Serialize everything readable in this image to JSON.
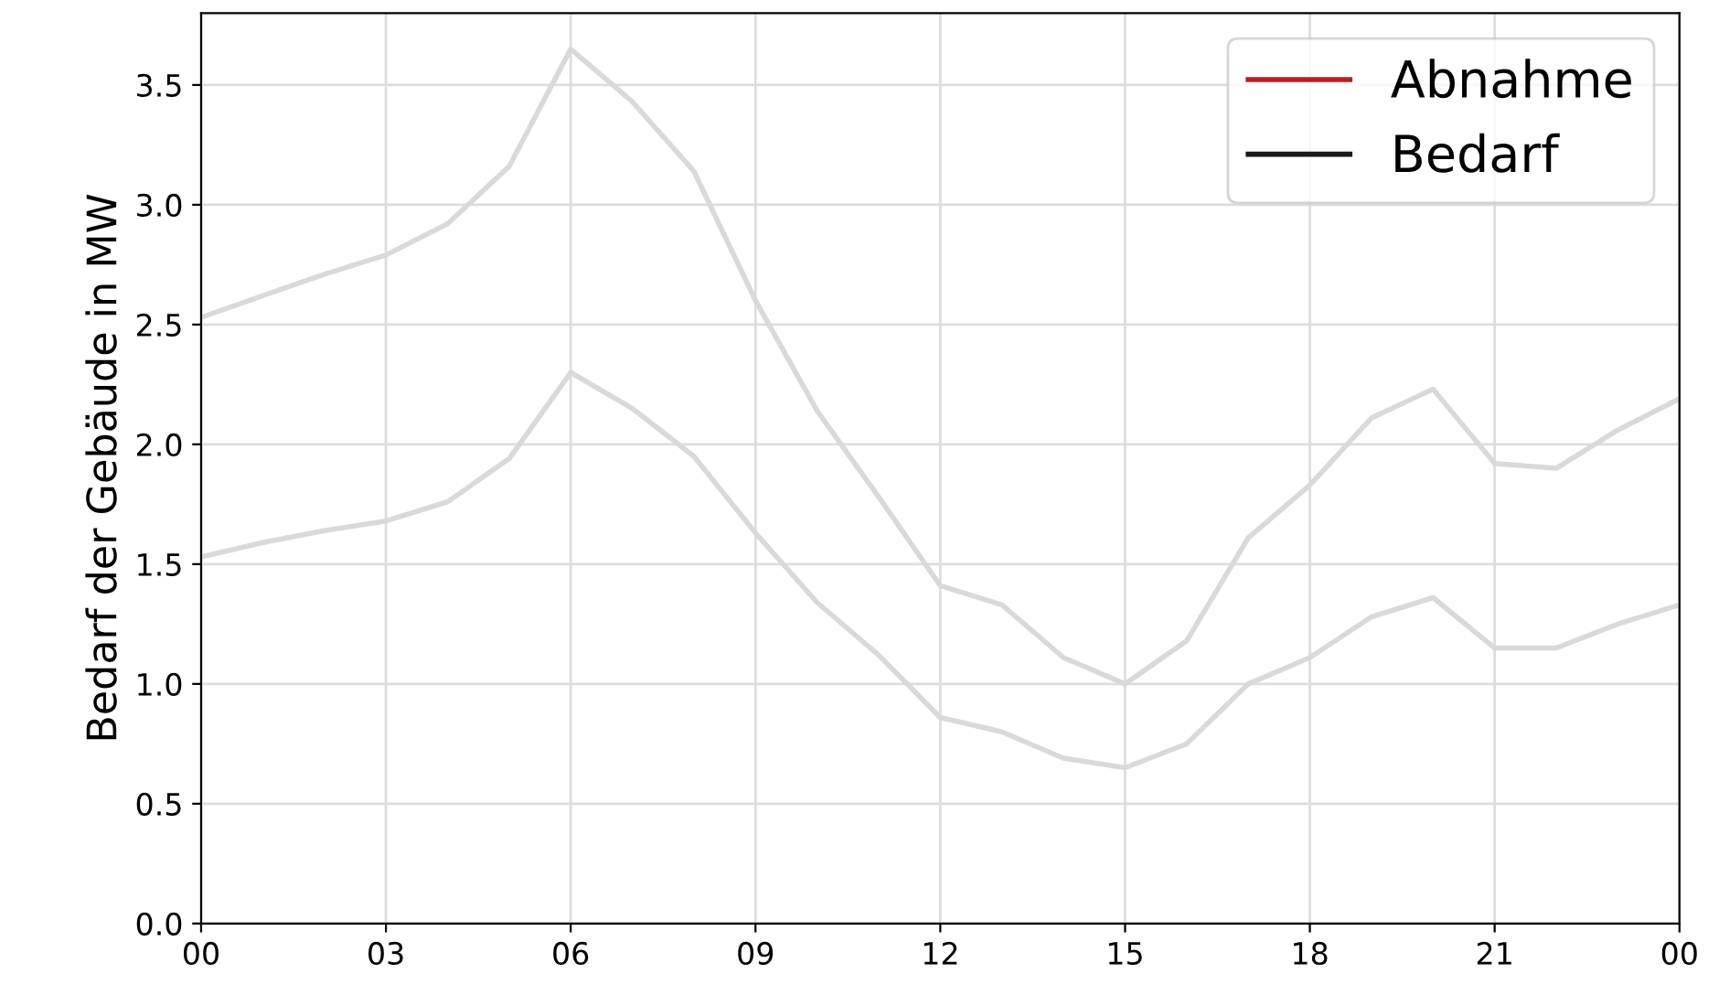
{
  "chart_data": {
    "type": "line",
    "ylabel": "Bedarf der Gebäude in MW",
    "x": [
      0,
      1,
      2,
      3,
      4,
      5,
      6,
      7,
      8,
      9,
      10,
      11,
      12,
      13,
      14,
      15,
      16,
      17,
      18,
      19,
      20,
      21,
      22,
      23,
      24
    ],
    "series": [
      {
        "color": "#d9d9d9",
        "values": [
          2.53,
          2.62,
          2.71,
          2.79,
          2.92,
          3.16,
          3.65,
          3.43,
          3.14,
          2.6,
          2.14,
          1.78,
          1.41,
          1.33,
          1.11,
          1.0,
          1.18,
          1.61,
          1.83,
          2.11,
          2.23,
          1.92,
          1.9,
          2.06,
          2.19
        ]
      },
      {
        "color": "#d9d9d9",
        "values": [
          1.53,
          1.59,
          1.64,
          1.68,
          1.76,
          1.94,
          2.3,
          2.15,
          1.95,
          1.63,
          1.34,
          1.12,
          0.86,
          0.8,
          0.69,
          0.65,
          0.75,
          1.0,
          1.11,
          1.28,
          1.36,
          1.15,
          1.15,
          1.25,
          1.33
        ]
      },
      {
        "name": "Abnahme",
        "color": "#b22222",
        "values": [
          null,
          null,
          null,
          null,
          null,
          null,
          null,
          null,
          null,
          null,
          null,
          null,
          null,
          null,
          null,
          null,
          null,
          null,
          null,
          null,
          null,
          null,
          null,
          null,
          null
        ]
      },
      {
        "name": "Bedarf",
        "color": "#1a1a1a",
        "values": [
          null,
          null,
          null,
          null,
          null,
          null,
          null,
          null,
          null,
          null,
          null,
          null,
          null,
          null,
          null,
          null,
          null,
          null,
          null,
          null,
          null,
          null,
          null,
          null,
          null
        ]
      }
    ],
    "xlim": [
      0,
      24
    ],
    "xticks": [
      {
        "value": 0,
        "label": "00"
      },
      {
        "value": 3,
        "label": "03"
      },
      {
        "value": 6,
        "label": "06"
      },
      {
        "value": 9,
        "label": "09"
      },
      {
        "value": 12,
        "label": "12"
      },
      {
        "value": 15,
        "label": "15"
      },
      {
        "value": 18,
        "label": "18"
      },
      {
        "value": 21,
        "label": "21"
      },
      {
        "value": 24,
        "label": "00"
      }
    ],
    "ylim": [
      0,
      3.8
    ],
    "yticks": [
      {
        "value": 0,
        "label": "0.0"
      },
      {
        "value": 0.5,
        "label": "0.5"
      },
      {
        "value": 1,
        "label": "1.0"
      },
      {
        "value": 1.5,
        "label": "1.5"
      },
      {
        "value": 2,
        "label": "2.0"
      },
      {
        "value": 2.5,
        "label": "2.5"
      },
      {
        "value": 3,
        "label": "3.0"
      },
      {
        "value": 3.5,
        "label": "3.5"
      }
    ],
    "grid": true,
    "legend": "top right"
  }
}
